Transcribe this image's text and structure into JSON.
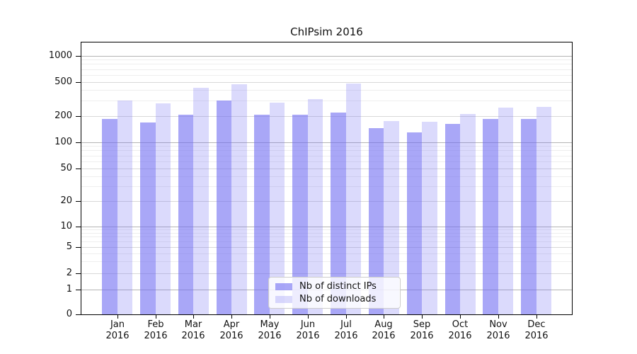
{
  "title": "ChIPsim 2016",
  "legend": {
    "items": [
      {
        "label": "Nb of distinct IPs",
        "color": "rgba(112,108,242,0.6)"
      },
      {
        "label": "Nb of downloads",
        "color": "rgba(112,108,242,0.25)"
      }
    ]
  },
  "colors": {
    "distinct_ips_bar": "rgba(112,108,242,0.6)",
    "downloads_bar": "rgba(112,108,242,0.25)",
    "grid_major": "#b4b4b4",
    "grid_labeled": "#d8d8d8",
    "grid_minor": "#eeeeee",
    "axis": "#000000",
    "legend_background": "rgba(255,255,255,0.8)",
    "legend_border": "#cccccc"
  },
  "chart_data": {
    "type": "bar",
    "title": "ChIPsim 2016",
    "categories": [
      "Jan 2016",
      "Feb 2016",
      "Mar 2016",
      "Apr 2016",
      "May 2016",
      "Jun 2016",
      "Jul 2016",
      "Aug 2016",
      "Sep 2016",
      "Oct 2016",
      "Nov 2016",
      "Dec 2016"
    ],
    "series": [
      {
        "name": "Nb of distinct IPs",
        "values": [
          185,
          168,
          205,
          300,
          205,
          205,
          220,
          145,
          128,
          160,
          185,
          183
        ]
      },
      {
        "name": "Nb of downloads",
        "values": [
          300,
          280,
          425,
          470,
          285,
          315,
          480,
          175,
          170,
          210,
          250,
          255
        ]
      }
    ],
    "xlabel": "",
    "ylabel": "",
    "yscale": "symlog",
    "yticks": [
      0,
      1,
      2,
      5,
      10,
      20,
      50,
      100,
      200,
      500,
      1000
    ],
    "minor_gridlines": [
      3,
      4,
      6,
      7,
      8,
      9,
      30,
      40,
      60,
      70,
      80,
      90,
      300,
      400,
      600,
      700,
      800,
      900
    ],
    "ylim": [
      0,
      1400
    ],
    "grid": true,
    "legend_position": "lower center"
  }
}
